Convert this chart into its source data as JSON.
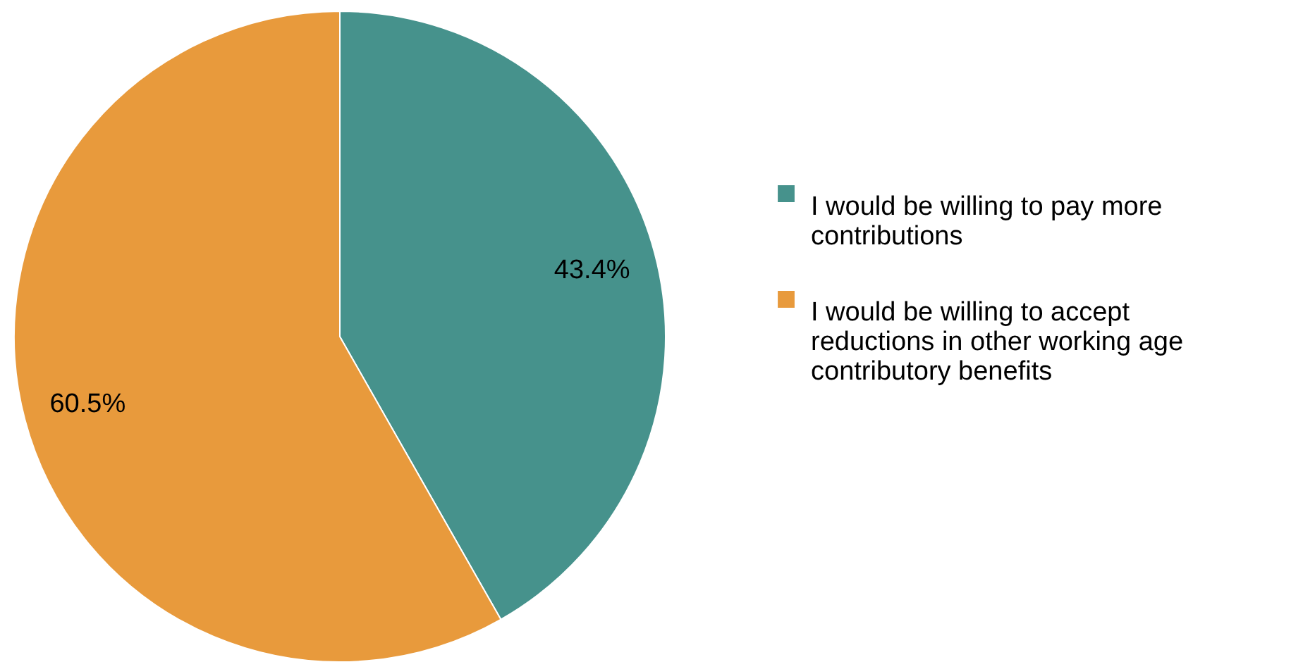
{
  "chart_data": {
    "type": "pie",
    "categories": [
      "I would be willing to pay more contributions",
      "I would be willing to accept reductions in other working age contributory benefits"
    ],
    "values": [
      43.4,
      60.5
    ],
    "colors": [
      "#46928c",
      "#e89a3c"
    ],
    "value_labels": [
      "43.4%",
      "60.5%"
    ],
    "legend": "right"
  }
}
